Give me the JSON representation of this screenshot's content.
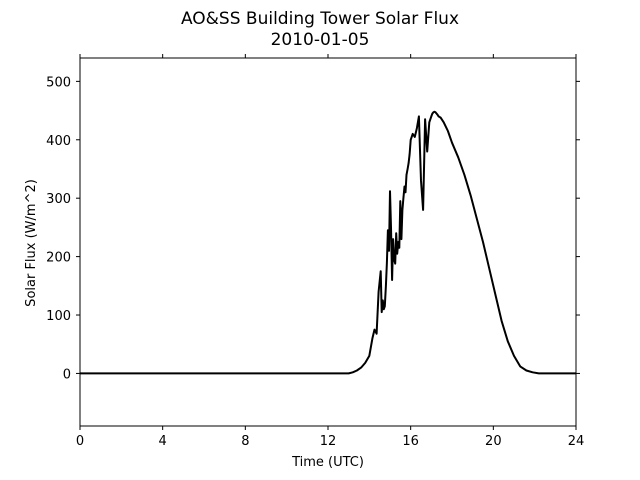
{
  "chart_data": {
    "type": "line",
    "title": "AO&SS Building Tower Solar Flux",
    "subtitle": "2010-01-05",
    "xlabel": "Time (UTC)",
    "ylabel": "Solar Flux (W/m^2)",
    "xlim": [
      0,
      24
    ],
    "ylim": [
      -90,
      540
    ],
    "xticks": [
      0,
      4,
      8,
      12,
      16,
      20,
      24
    ],
    "xtick_labels": [
      "0",
      "4",
      "8",
      "12",
      "16",
      "20",
      "24"
    ],
    "yticks": [
      0,
      100,
      200,
      300,
      400,
      500
    ],
    "ytick_labels": [
      "0",
      "100",
      "200",
      "300",
      "400",
      "500"
    ],
    "grid": false,
    "line_color": "#000000",
    "series": [
      {
        "x": [
          0,
          13.0,
          13.2,
          13.4,
          13.6,
          13.8,
          14.0,
          14.15,
          14.25,
          14.35,
          14.45,
          14.55,
          14.6,
          14.65,
          14.7,
          14.75,
          14.8,
          14.85,
          14.9,
          14.95,
          15.0,
          15.05,
          15.1,
          15.15,
          15.2,
          15.25,
          15.3,
          15.35,
          15.4,
          15.45,
          15.5,
          15.55,
          15.6,
          15.65,
          15.7,
          15.75,
          15.8,
          15.85,
          15.9,
          15.95,
          16.0,
          16.1,
          16.2,
          16.3,
          16.4,
          16.5,
          16.6,
          16.7,
          16.8,
          16.9,
          17.0,
          17.05,
          17.1,
          17.15,
          17.2,
          17.25,
          17.3,
          17.35,
          17.45,
          17.6,
          17.8,
          18.0,
          18.3,
          18.6,
          18.9,
          19.2,
          19.5,
          19.8,
          20.1,
          20.4,
          20.7,
          21.0,
          21.3,
          21.6,
          21.9,
          22.2,
          22.4,
          22.6,
          22.8,
          23.0,
          23.2,
          24.0
        ],
        "y": [
          0,
          0,
          2,
          5,
          10,
          18,
          30,
          60,
          75,
          68,
          140,
          175,
          105,
          125,
          110,
          115,
          150,
          190,
          245,
          210,
          312,
          250,
          160,
          230,
          195,
          188,
          240,
          205,
          225,
          215,
          295,
          230,
          280,
          300,
          320,
          310,
          340,
          350,
          360,
          375,
          400,
          410,
          405,
          420,
          440,
          330,
          280,
          435,
          380,
          430,
          440,
          445,
          447,
          448,
          447,
          445,
          443,
          440,
          438,
          430,
          415,
          395,
          370,
          340,
          305,
          265,
          225,
          180,
          135,
          90,
          55,
          30,
          12,
          5,
          2,
          0,
          0,
          0,
          0,
          0,
          0,
          0
        ]
      }
    ]
  }
}
